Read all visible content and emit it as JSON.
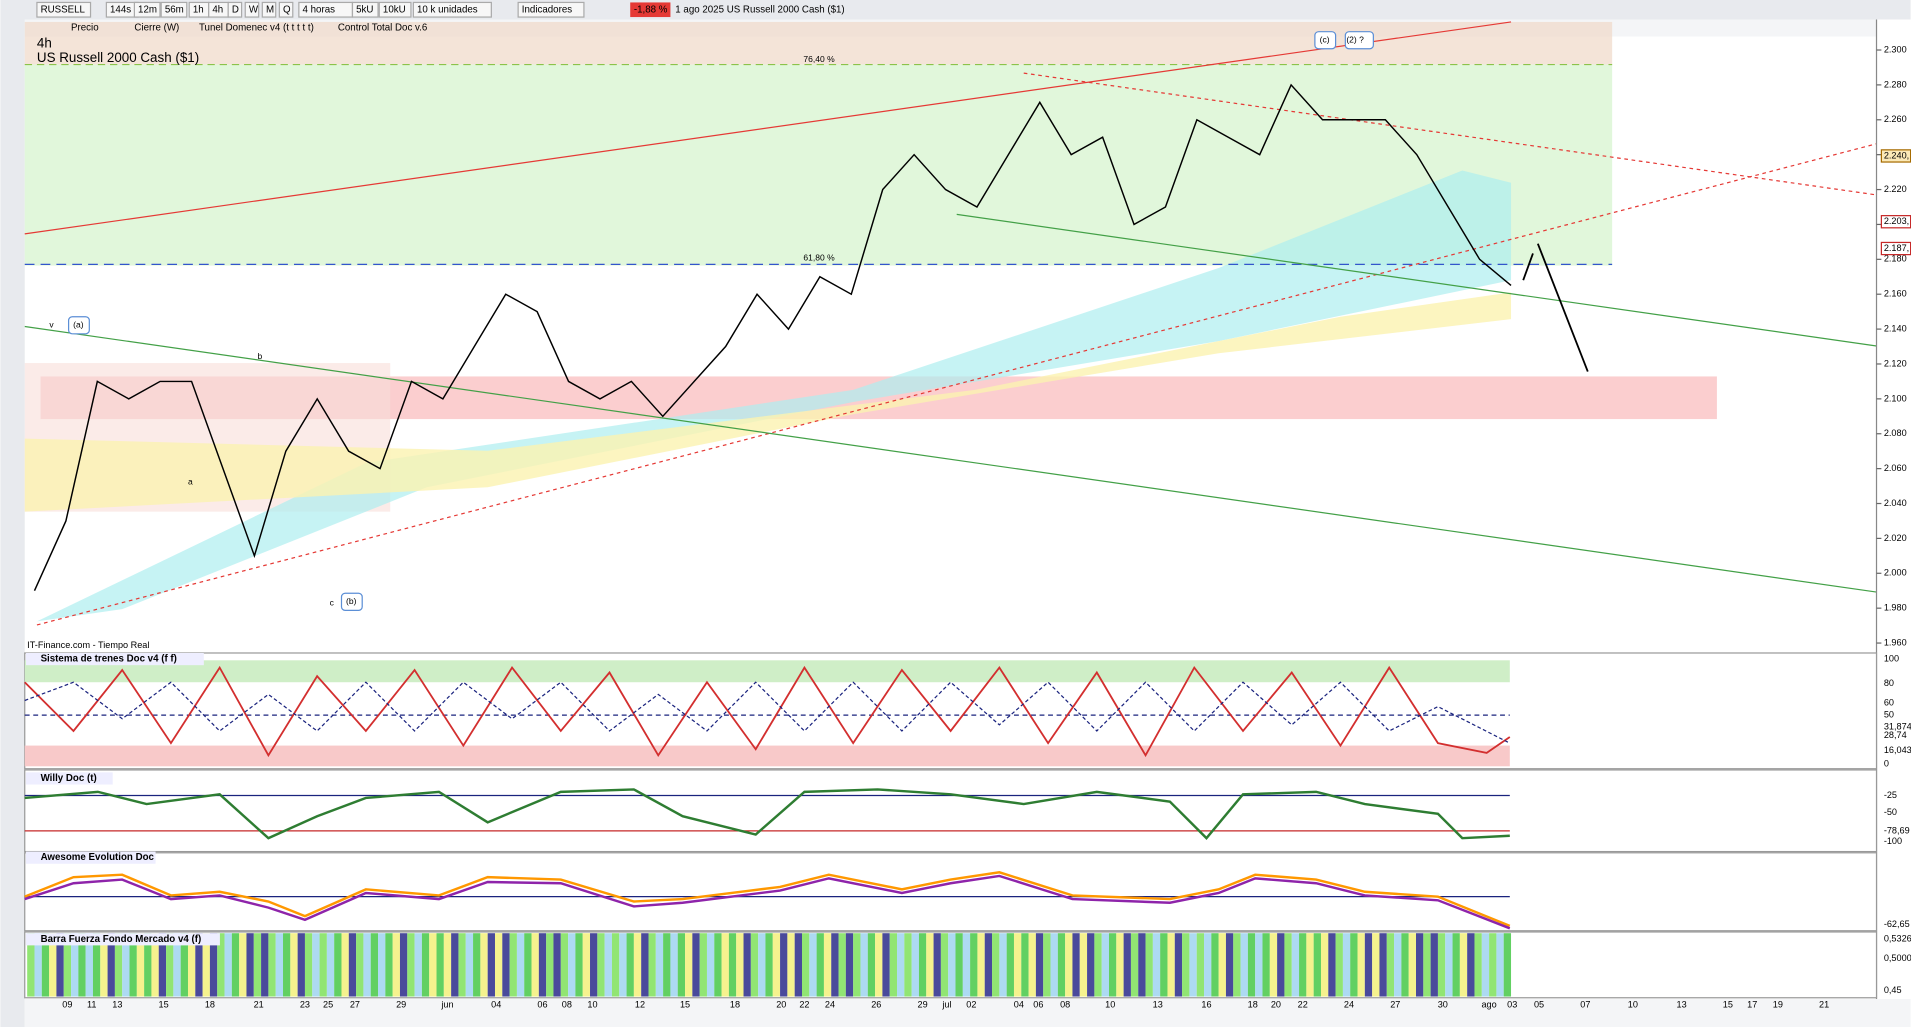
{
  "toolbar": {
    "items": [
      "RUSSELL",
      "144s",
      "12m",
      "56m",
      "1h",
      "4h",
      "D",
      "W",
      "M",
      "Q",
      "4 horas",
      "5kU",
      "10kU",
      "10 k unidades",
      "Indicadores",
      "-1,88 %",
      "1 ago 2025 US Russell 2000 Cash ($1)"
    ]
  },
  "indicator_bar": [
    "Precio",
    "Cierre (W)",
    "Tunel Domenec v4 (t t t t t)",
    "Control Total Doc v.6"
  ],
  "chart_data": {
    "type": "line",
    "timeframe": "4h",
    "title": "US Russell 2000 Cash ($1)",
    "color": "#000000",
    "values": [
      1.99,
      2.03,
      2.11,
      2.1,
      2.11,
      2.11,
      2.06,
      2.01,
      2.07,
      2.1,
      2.07,
      2.06,
      2.11,
      2.1,
      2.13,
      2.16,
      2.15,
      2.11,
      2.1,
      2.11,
      2.09,
      2.11,
      2.13,
      2.16,
      2.14,
      2.17,
      2.16,
      2.22,
      2.24,
      2.22,
      2.21,
      2.24,
      2.27,
      2.24,
      2.25,
      2.2,
      2.21,
      2.26,
      2.25,
      2.24,
      2.28,
      2.26,
      2.26,
      2.26,
      2.24,
      2.21,
      2.18,
      2.165
    ],
    "ylim": [
      1.955,
      2.3175
    ],
    "yticks": [
      {
        "value": 1.96,
        "label": "1.960"
      },
      {
        "value": 1.98,
        "label": "1.980"
      },
      {
        "value": 2.0,
        "label": "2.000"
      },
      {
        "value": 2.02,
        "label": "2.020"
      },
      {
        "value": 2.04,
        "label": "2.040"
      },
      {
        "value": 2.06,
        "label": "2.060"
      },
      {
        "value": 2.08,
        "label": "2.080"
      },
      {
        "value": 2.1,
        "label": "2.100"
      },
      {
        "value": 2.12,
        "label": "2.120"
      },
      {
        "value": 2.14,
        "label": "2.140"
      },
      {
        "value": 2.16,
        "label": "2.160"
      },
      {
        "value": 2.18,
        "label": "2.180"
      },
      {
        "value": 2.2,
        "label": "2.200"
      },
      {
        "value": 2.22,
        "label": "2.220"
      },
      {
        "value": 2.24,
        "label": "2.240"
      },
      {
        "value": 2.26,
        "label": "2.260"
      },
      {
        "value": 2.28,
        "label": "2.280"
      },
      {
        "value": 2.3,
        "label": "2.300"
      }
    ],
    "fib_levels": [
      "76,40 %",
      "61,80 %"
    ],
    "price_tags": [
      "2.240,",
      "2.203,",
      "2.187,"
    ],
    "wave_labels": [
      "(a)",
      "(b)",
      "(c)",
      "(2) ?",
      "v",
      "b",
      "a",
      "c"
    ],
    "source": "IT-Finance.com - Tiempo Real"
  },
  "panels": [
    {
      "title": "Sistema de trenes Doc v4 (f f)",
      "labels": [
        "100",
        "80",
        "60",
        "50",
        "31,874",
        "28,74",
        "16,043",
        "0"
      ]
    },
    {
      "title": "Willy Doc (t)",
      "labels": [
        "-25",
        "-50",
        "-78,69",
        "-100"
      ]
    },
    {
      "title": "Awesome Evolution Doc",
      "labels": [
        "-62,65"
      ]
    },
    {
      "title": "Barra Fuerza Fondo Mercado v4 (f)",
      "labels": [
        "0,5326",
        "0,5000",
        "0,45"
      ]
    }
  ],
  "date_axis": [
    "09",
    "11",
    "13",
    "15",
    "18",
    "21",
    "23",
    "25",
    "27",
    "29",
    "jun",
    "04",
    "06",
    "08",
    "10",
    "12",
    "15",
    "18",
    "20",
    "22",
    "24",
    "26",
    "29",
    "jul",
    "02",
    "04",
    "06",
    "08",
    "10",
    "13",
    "16",
    "18",
    "20",
    "22",
    "24",
    "27",
    "30",
    "ago",
    "03",
    "05",
    "07",
    "10",
    "13",
    "15",
    "17",
    "19",
    "21"
  ]
}
